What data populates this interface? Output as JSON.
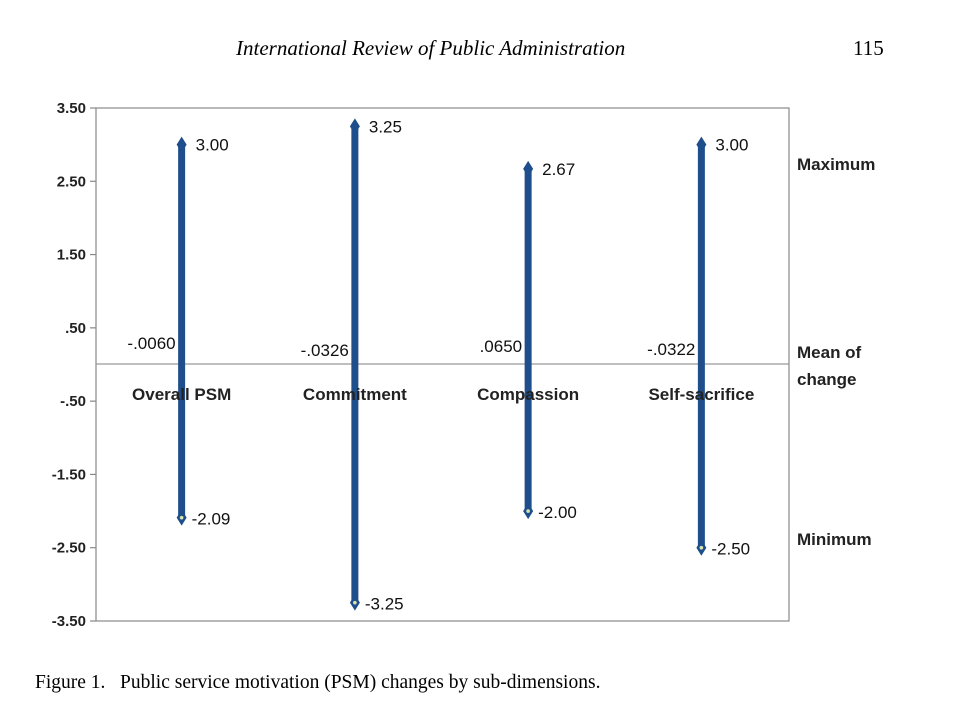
{
  "header": {
    "journal": "International Review of Public Administration",
    "page_number": "115"
  },
  "caption": "Figure 1.   Public service motivation (PSM) changes by sub-dimensions.",
  "chart_data": {
    "type": "range",
    "categories": [
      "Overall PSM",
      "Commitment",
      "Compassion",
      "Self-sacrifice"
    ],
    "maximum": [
      3.0,
      3.25,
      2.67,
      3.0
    ],
    "minimum": [
      -2.09,
      -3.25,
      -2.0,
      -2.5
    ],
    "mean_of_change": [
      -0.006,
      -0.0326,
      0.065,
      -0.0322
    ],
    "max_labels": [
      "3.00",
      "3.25",
      "2.67",
      "3.00"
    ],
    "min_labels": [
      "-2.09",
      "-3.25",
      "-2.00",
      "-2.50"
    ],
    "mean_labels": [
      "-.0060",
      "-.0326",
      ".0650",
      "-.0322"
    ],
    "yticks": [
      3.5,
      2.5,
      1.5,
      0.5,
      -0.5,
      -1.5,
      -2.5,
      -3.5
    ],
    "ytick_labels": [
      "3.50",
      "2.50",
      "1.50",
      ".50",
      "-.50",
      "-1.50",
      "-2.50",
      "-3.50"
    ],
    "ylim": [
      -3.5,
      3.5
    ],
    "side_labels": {
      "maximum": "Maximum",
      "mean_line1": "Mean of",
      "mean_line2": "change",
      "minimum": "Minimum"
    },
    "series_color": "#1f4e8c",
    "grid": false
  }
}
